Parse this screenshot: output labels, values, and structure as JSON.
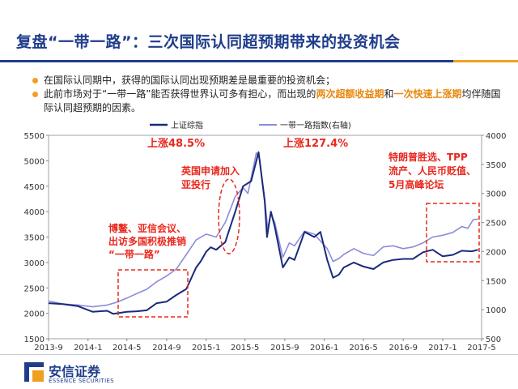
{
  "slide": {
    "title": "复盘“一带一路”：三次国际认同超预期带来的投资机会",
    "bullets": [
      {
        "parts": [
          {
            "text": "在国际认同期中，获得的国际认同出现预期差是最重要的投资机会；",
            "hl": false
          }
        ]
      },
      {
        "parts": [
          {
            "text": "此前市场对于“一带一路”能否获得世界认可多有担心，而出现的",
            "hl": false
          },
          {
            "text": "两次超额收益期",
            "hl": true
          },
          {
            "text": "和",
            "hl": false
          },
          {
            "text": "一次快速上涨期",
            "hl": true
          },
          {
            "text": "均伴随国际认同超预期的因素。",
            "hl": false
          }
        ]
      }
    ],
    "logo_cn": "安信证券",
    "logo_en": "ESSENCE SECURITIES"
  },
  "chart_data": {
    "type": "line",
    "legend_position": "top",
    "x_ticks": [
      "2013-9",
      "2014-1",
      "2014-5",
      "2014-9",
      "2015-1",
      "2015-5",
      "2015-9",
      "2016-1",
      "2016-5",
      "2016-9",
      "2017-1",
      "2017-5"
    ],
    "y_left": {
      "min": 1500,
      "max": 5500,
      "ticks": [
        1500,
        2000,
        2500,
        3000,
        3500,
        4000,
        4500,
        5000,
        5500
      ]
    },
    "y_right": {
      "min": 500,
      "max": 4000,
      "ticks": [
        500,
        1000,
        1500,
        2000,
        2500,
        3000,
        3500,
        4000
      ]
    },
    "series": [
      {
        "name": "上证综指",
        "axis": "left",
        "color": "#1a2a7a",
        "points": [
          [
            "2013-09-01",
            2200
          ],
          [
            "2013-10-15",
            2180
          ],
          [
            "2013-12-01",
            2140
          ],
          [
            "2014-01-15",
            2030
          ],
          [
            "2014-03-01",
            2050
          ],
          [
            "2014-03-20",
            1990
          ],
          [
            "2014-05-01",
            2030
          ],
          [
            "2014-06-01",
            2040
          ],
          [
            "2014-07-01",
            2060
          ],
          [
            "2014-08-01",
            2200
          ],
          [
            "2014-09-01",
            2230
          ],
          [
            "2014-10-01",
            2360
          ],
          [
            "2014-11-01",
            2480
          ],
          [
            "2014-12-01",
            2900
          ],
          [
            "2014-12-15",
            3020
          ],
          [
            "2015-01-01",
            3210
          ],
          [
            "2015-01-15",
            3300
          ],
          [
            "2015-02-01",
            3250
          ],
          [
            "2015-03-01",
            3400
          ],
          [
            "2015-04-01",
            4000
          ],
          [
            "2015-04-25",
            4500
          ],
          [
            "2015-05-20",
            4600
          ],
          [
            "2015-06-12",
            5170
          ],
          [
            "2015-07-01",
            4200
          ],
          [
            "2015-07-08",
            3500
          ],
          [
            "2015-07-20",
            4000
          ],
          [
            "2015-08-01",
            3700
          ],
          [
            "2015-08-26",
            2900
          ],
          [
            "2015-09-15",
            3100
          ],
          [
            "2015-10-01",
            3050
          ],
          [
            "2015-11-01",
            3600
          ],
          [
            "2015-12-01",
            3500
          ],
          [
            "2015-12-20",
            3600
          ],
          [
            "2016-01-10",
            3050
          ],
          [
            "2016-01-28",
            2700
          ],
          [
            "2016-02-15",
            2760
          ],
          [
            "2016-03-01",
            2900
          ],
          [
            "2016-04-01",
            3000
          ],
          [
            "2016-05-01",
            2920
          ],
          [
            "2016-06-01",
            2870
          ],
          [
            "2016-07-01",
            3000
          ],
          [
            "2016-08-01",
            3050
          ],
          [
            "2016-09-01",
            3070
          ],
          [
            "2016-10-01",
            3070
          ],
          [
            "2016-11-01",
            3200
          ],
          [
            "2016-12-01",
            3250
          ],
          [
            "2017-01-01",
            3120
          ],
          [
            "2017-02-01",
            3150
          ],
          [
            "2017-03-01",
            3230
          ],
          [
            "2017-04-01",
            3220
          ],
          [
            "2017-04-20",
            3250
          ]
        ]
      },
      {
        "name": "一带一路指数(右轴)",
        "axis": "right",
        "color": "#8c8cdc",
        "points": [
          [
            "2013-09-01",
            1150
          ],
          [
            "2013-10-15",
            1100
          ],
          [
            "2013-12-01",
            1080
          ],
          [
            "2014-01-15",
            1050
          ],
          [
            "2014-03-01",
            1080
          ],
          [
            "2014-04-01",
            1130
          ],
          [
            "2014-05-01",
            1200
          ],
          [
            "2014-06-01",
            1280
          ],
          [
            "2014-07-01",
            1350
          ],
          [
            "2014-08-01",
            1480
          ],
          [
            "2014-09-01",
            1580
          ],
          [
            "2014-10-01",
            1700
          ],
          [
            "2014-11-01",
            1950
          ],
          [
            "2014-12-01",
            2200
          ],
          [
            "2015-01-01",
            2300
          ],
          [
            "2015-02-01",
            2250
          ],
          [
            "2015-03-01",
            2500
          ],
          [
            "2015-04-01",
            2950
          ],
          [
            "2015-04-25",
            3100
          ],
          [
            "2015-05-10",
            3000
          ],
          [
            "2015-06-05",
            3700
          ],
          [
            "2015-06-15",
            3600
          ],
          [
            "2015-07-01",
            2900
          ],
          [
            "2015-07-10",
            2400
          ],
          [
            "2015-07-20",
            2650
          ],
          [
            "2015-08-01",
            2500
          ],
          [
            "2015-08-26",
            1900
          ],
          [
            "2015-09-15",
            2150
          ],
          [
            "2015-10-01",
            2100
          ],
          [
            "2015-11-01",
            2350
          ],
          [
            "2015-12-01",
            2300
          ],
          [
            "2016-01-10",
            2050
          ],
          [
            "2016-01-28",
            1830
          ],
          [
            "2016-02-15",
            1880
          ],
          [
            "2016-03-01",
            1950
          ],
          [
            "2016-04-01",
            2050
          ],
          [
            "2016-05-01",
            1970
          ],
          [
            "2016-06-01",
            1930
          ],
          [
            "2016-07-01",
            2080
          ],
          [
            "2016-08-01",
            2100
          ],
          [
            "2016-09-01",
            2050
          ],
          [
            "2016-10-01",
            2080
          ],
          [
            "2016-11-01",
            2150
          ],
          [
            "2016-12-01",
            2250
          ],
          [
            "2017-01-01",
            2280
          ],
          [
            "2017-02-01",
            2330
          ],
          [
            "2017-03-01",
            2430
          ],
          [
            "2017-03-20",
            2400
          ],
          [
            "2017-04-05",
            2550
          ],
          [
            "2017-04-20",
            2560
          ]
        ]
      }
    ],
    "annotations": [
      {
        "id": "rise1",
        "lines": [
          "上涨48.5%"
        ]
      },
      {
        "id": "rise2",
        "lines": [
          "上涨127.4%"
        ]
      },
      {
        "id": "uk-aiib",
        "lines": [
          "英国申请加入",
          "亚投行"
        ]
      },
      {
        "id": "boao",
        "lines": [
          "博鳌、亚信会议、",
          "出访多国积极推销",
          "“一带一路”"
        ]
      },
      {
        "id": "trump",
        "lines": [
          "特朗普胜选、TPP",
          "流产、人民币贬值、",
          "5月高峰论坛"
        ]
      }
    ]
  }
}
